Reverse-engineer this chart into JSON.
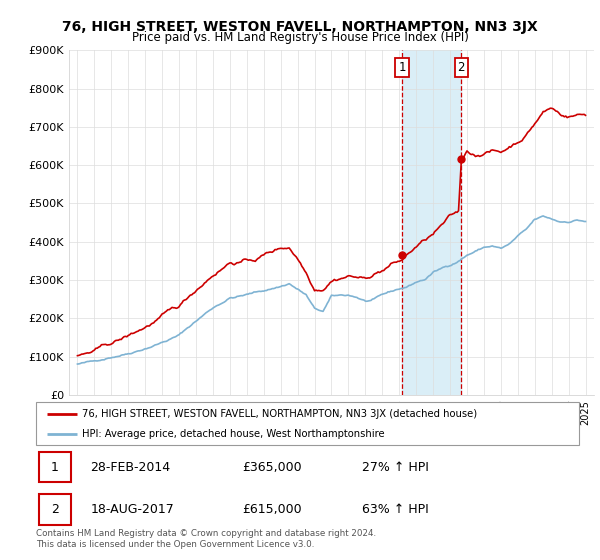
{
  "title": "76, HIGH STREET, WESTON FAVELL, NORTHAMPTON, NN3 3JX",
  "subtitle": "Price paid vs. HM Land Registry's House Price Index (HPI)",
  "legend_line1": "76, HIGH STREET, WESTON FAVELL, NORTHAMPTON, NN3 3JX (detached house)",
  "legend_line2": "HPI: Average price, detached house, West Northamptonshire",
  "sale1_date": "28-FEB-2014",
  "sale1_price": 365000,
  "sale1_pct": "27%",
  "sale2_date": "18-AUG-2017",
  "sale2_price": 615000,
  "sale2_pct": "63%",
  "footer": "Contains HM Land Registry data © Crown copyright and database right 2024.\nThis data is licensed under the Open Government Licence v3.0.",
  "red_color": "#cc0000",
  "blue_color": "#7fb3d3",
  "highlight_color": "#daeef7",
  "ylim": [
    0,
    900000
  ],
  "xmin": 1994.5,
  "xmax": 2025.5
}
